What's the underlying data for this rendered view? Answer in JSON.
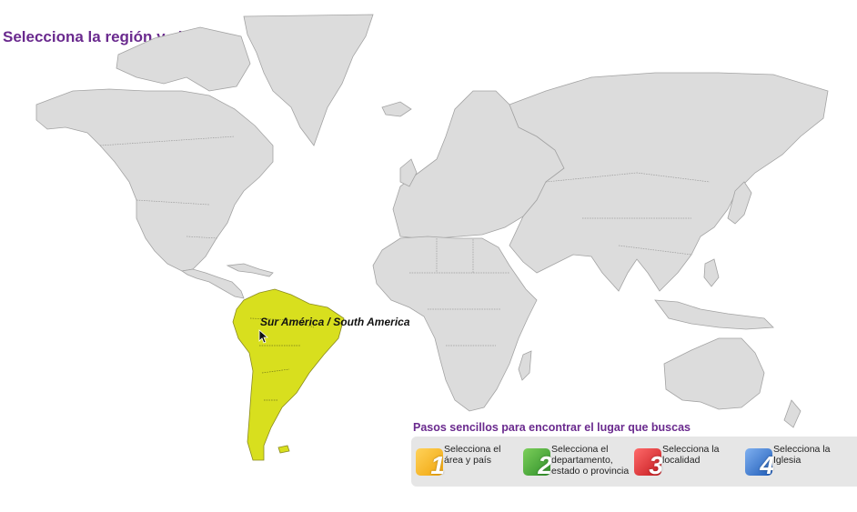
{
  "page": {
    "title": "Selecciona la región y el país."
  },
  "map": {
    "hover_label": "Sur América / South America",
    "highlight_color": "#d8df1e",
    "land_color": "#dcdcdc",
    "regions": [
      "north-america",
      "greenland",
      "central-america",
      "south-america",
      "europe",
      "africa",
      "asia",
      "australia",
      "antarctica-none"
    ]
  },
  "steps": {
    "title": "Pasos sencillos para encontrar el lugar que buscas",
    "items": [
      {
        "number": "1",
        "label": "Selecciona el\nárea y  país",
        "color": "#f2b11a"
      },
      {
        "number": "2",
        "label": "Selecciona el\ndepartamento,\nestado o provincia",
        "color": "#3fa43a"
      },
      {
        "number": "3",
        "label": "Selecciona la\nlocalidad",
        "color": "#d9262b"
      },
      {
        "number": "4",
        "label": "Selecciona la\nIglesia",
        "color": "#2f6fc9"
      }
    ]
  }
}
